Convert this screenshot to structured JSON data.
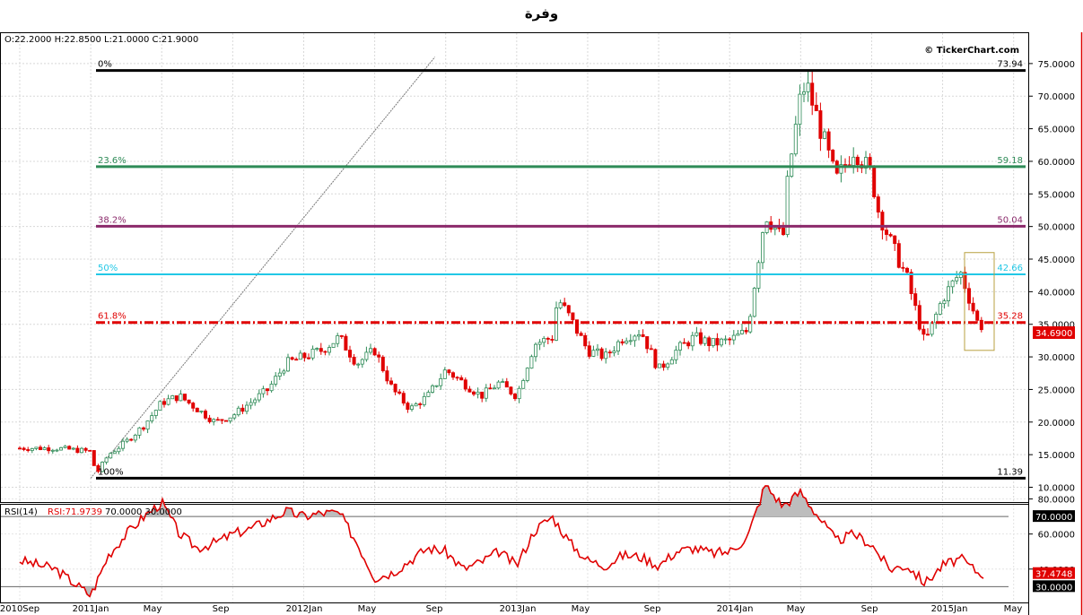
{
  "title": "وفرة",
  "ohlc_readout": "O:22.2000 H:22.8500 L:21.0000 C:21.9000",
  "watermark": "© TickerChart.com",
  "current_price": "34.6900",
  "colors": {
    "up": "#2e8b57",
    "down": "#e00000",
    "rsi": "#e00000",
    "frame_right": "#e00000"
  },
  "chart_data": [
    {
      "type": "candlestick",
      "title": "وفرة",
      "x_ticks": [
        "2010Sep",
        "2011Jan",
        "May",
        "Sep",
        "2012Jan",
        "May",
        "Sep",
        "2013Jan",
        "May",
        "Sep",
        "2014Jan",
        "May",
        "Sep",
        "2015Jan",
        "May"
      ],
      "y_ticks": [
        "10.0000",
        "15.0000",
        "20.0000",
        "25.0000",
        "30.0000",
        "35.0000",
        "40.0000",
        "45.0000",
        "50.0000",
        "55.0000",
        "60.0000",
        "65.0000",
        "70.0000",
        "75.0000"
      ],
      "ylim": [
        9,
        78
      ],
      "grid": true,
      "last_price": 34.69,
      "trend_line": {
        "from": [
          "2011Jan",
          11.39
        ],
        "to": [
          "2012Sep",
          76
        ]
      },
      "fibonacci": [
        {
          "pct": "0%",
          "value": "73.94",
          "level": 73.94,
          "color": "#000000",
          "style": "solid",
          "width": 3
        },
        {
          "pct": "23.6%",
          "value": "59.18",
          "level": 59.18,
          "color": "#2e8b57",
          "style": "solid",
          "width": 3
        },
        {
          "pct": "38.2%",
          "value": "50.04",
          "level": 50.04,
          "color": "#8b2a6b",
          "style": "solid",
          "width": 3
        },
        {
          "pct": "50%",
          "value": "42.66",
          "level": 42.66,
          "color": "#22c8e6",
          "style": "solid",
          "width": 2
        },
        {
          "pct": "61.8%",
          "value": "35.28",
          "level": 35.28,
          "color": "#e00000",
          "style": "dashdot",
          "width": 3
        },
        {
          "pct": "100%",
          "value": "11.39",
          "level": 11.39,
          "color": "#000000",
          "style": "solid",
          "width": 3
        }
      ],
      "highlight_box": {
        "from": "2015Feb",
        "to": "2015Mar",
        "low": 31,
        "high": 46
      },
      "price_path": [
        [
          "2010Sep",
          16.0
        ],
        [
          "2010Nov",
          16.0
        ],
        [
          "2011Jan",
          15.5
        ],
        [
          "2011Jan",
          12.0
        ],
        [
          "2011Feb",
          15.0
        ],
        [
          "2011Mar",
          17.0
        ],
        [
          "2011Apr",
          19.5
        ],
        [
          "2011May",
          23.0
        ],
        [
          "2011Jun",
          24.0
        ],
        [
          "2011Jul",
          22.0
        ],
        [
          "2011Aug",
          20.0
        ],
        [
          "2011Sep",
          21.0
        ],
        [
          "2011Oct",
          23.0
        ],
        [
          "2011Nov",
          25.0
        ],
        [
          "2011Dec",
          29.0
        ],
        [
          "2012Jan",
          30.0
        ],
        [
          "2012Feb",
          31.0
        ],
        [
          "2012Mar",
          33.0
        ],
        [
          "2012Apr",
          29.0
        ],
        [
          "2012May",
          31.0
        ],
        [
          "2012Jun",
          25.0
        ],
        [
          "2012Jul",
          22.0
        ],
        [
          "2012Aug",
          24.0
        ],
        [
          "2012Sep",
          28.0
        ],
        [
          "2012Oct",
          26.0
        ],
        [
          "2012Nov",
          24.0
        ],
        [
          "2012Dec",
          26.0
        ],
        [
          "2013Jan",
          24.0
        ],
        [
          "2013Feb",
          32.0
        ],
        [
          "2013Mar",
          33.0
        ],
        [
          "2013Mar",
          39.0
        ],
        [
          "2013Apr",
          36.0
        ],
        [
          "2013May",
          31.0
        ],
        [
          "2013Jun",
          30.0
        ],
        [
          "2013Jul",
          33.0
        ],
        [
          "2013Aug",
          34.0
        ],
        [
          "2013Sep",
          28.0
        ],
        [
          "2013Oct",
          31.0
        ],
        [
          "2013Nov",
          33.0
        ],
        [
          "2013Dec",
          32.0
        ],
        [
          "2014Jan",
          32.5
        ],
        [
          "2014Feb",
          34.0
        ],
        [
          "2014Mar",
          52.0
        ],
        [
          "2014Apr",
          48.0
        ],
        [
          "2014Apr",
          58.0
        ],
        [
          "2014May",
          70.0
        ],
        [
          "2014May",
          72.0
        ],
        [
          "2014Jun",
          66.0
        ],
        [
          "2014Jul",
          57.0
        ],
        [
          "2014Aug",
          62.0
        ],
        [
          "2014Sep",
          58.0
        ],
        [
          "2014Sep",
          53.0
        ],
        [
          "2014Oct",
          48.0
        ],
        [
          "2014Nov",
          42.0
        ],
        [
          "2014Dec",
          32.0
        ],
        [
          "2015Jan",
          39.0
        ],
        [
          "2015Feb",
          43.0
        ],
        [
          "2015Mar",
          35.0
        ],
        [
          "2015Mar",
          34.69
        ]
      ]
    },
    {
      "type": "line",
      "label": "RSI(14)",
      "series": [
        {
          "name": "RSI:71.9739",
          "path": [
            [
              "2010Sep",
              45
            ],
            [
              "2010Nov",
              40
            ],
            [
              "2011Jan",
              25
            ],
            [
              "2011Feb",
              48
            ],
            [
              "2011Mar",
              60
            ],
            [
              "2011Apr",
              70
            ],
            [
              "2011May",
              78
            ],
            [
              "2011Jun",
              60
            ],
            [
              "2011Jul",
              52
            ],
            [
              "2011Aug",
              55
            ],
            [
              "2011Sep",
              60
            ],
            [
              "2011Oct",
              63
            ],
            [
              "2011Nov",
              68
            ],
            [
              "2011Dec",
              73
            ],
            [
              "2012Jan",
              70
            ],
            [
              "2012Feb",
              72
            ],
            [
              "2012Mar",
              72
            ],
            [
              "2012Apr",
              55
            ],
            [
              "2012May",
              35
            ],
            [
              "2012Jun",
              38
            ],
            [
              "2012Jul",
              45
            ],
            [
              "2012Aug",
              52
            ],
            [
              "2012Sep",
              50
            ],
            [
              "2012Oct",
              40
            ],
            [
              "2012Nov",
              44
            ],
            [
              "2012Dec",
              50
            ],
            [
              "2013Jan",
              42
            ],
            [
              "2013Feb",
              62
            ],
            [
              "2013Mar",
              70
            ],
            [
              "2013Apr",
              55
            ],
            [
              "2013May",
              45
            ],
            [
              "2013Jun",
              42
            ],
            [
              "2013Jul",
              48
            ],
            [
              "2013Aug",
              47
            ],
            [
              "2013Sep",
              42
            ],
            [
              "2013Oct",
              50
            ],
            [
              "2013Nov",
              52
            ],
            [
              "2013Dec",
              49
            ],
            [
              "2014Jan",
              50
            ],
            [
              "2014Feb",
              58
            ],
            [
              "2014Mar",
              88
            ],
            [
              "2014Apr",
              76
            ],
            [
              "2014May",
              84
            ],
            [
              "2014Jun",
              70
            ],
            [
              "2014Jul",
              56
            ],
            [
              "2014Aug",
              60
            ],
            [
              "2014Sep",
              54
            ],
            [
              "2014Oct",
              40
            ],
            [
              "2014Nov",
              42
            ],
            [
              "2014Dec",
              32
            ],
            [
              "2015Jan",
              42
            ],
            [
              "2015Feb",
              46
            ],
            [
              "2015Mar",
              38
            ],
            [
              "2015Mar",
              37.4748
            ]
          ]
        }
      ],
      "levels": [
        70,
        30
      ],
      "level_labels": [
        "70.0000",
        "30.0000"
      ],
      "y_ticks": [
        "40.0000",
        "60.0000",
        "80.0000"
      ],
      "ylim": [
        20,
        95
      ],
      "current_value": "37.4748"
    }
  ]
}
